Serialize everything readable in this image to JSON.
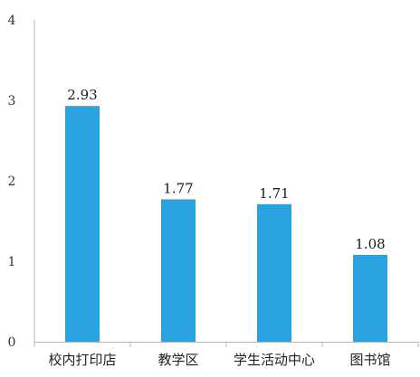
{
  "chart_data": {
    "type": "bar",
    "title": "",
    "xlabel": "",
    "ylabel": "",
    "categories": [
      "校内打印店",
      "教学区",
      "学生活动中心",
      "图书馆"
    ],
    "values": [
      2.93,
      1.77,
      1.71,
      1.08
    ],
    "data_labels": [
      "2.93",
      "1.77",
      "1.71",
      "1.08"
    ],
    "ylim": [
      0,
      4
    ],
    "yticks": [
      0,
      1,
      2,
      3,
      4
    ],
    "ytick_labels": [
      "0",
      "1",
      "2",
      "3",
      "4"
    ],
    "bar_color": "#29a3e0",
    "axis_color": "#b5b5b5",
    "grid": false,
    "legend": "none"
  }
}
